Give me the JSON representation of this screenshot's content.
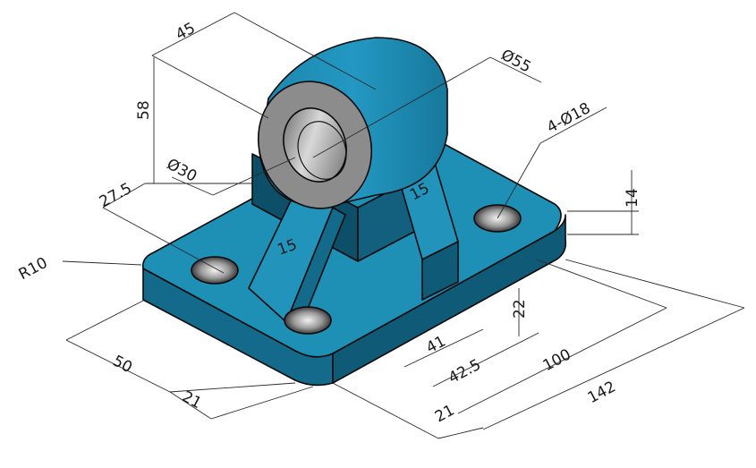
{
  "colors": {
    "body_top": "#1e8fb5",
    "body_side": "#146a8a",
    "body_dark": "#0d4e68",
    "bore_inner": "#9a9a9a",
    "bore_face": "#8c8c8c",
    "background": "#ffffff"
  },
  "dimensions": {
    "d45": "45",
    "d58": "58",
    "d55": "Ø55",
    "d30": "Ø30",
    "d27_5": "27.5",
    "d15_left": "15",
    "d15_right": "15",
    "holes": "4-Ø18",
    "d14": "14",
    "r10": "R10",
    "d22": "22",
    "d50": "50",
    "d21_left": "21",
    "d41": "41",
    "d42_5": "42.5",
    "d100": "100",
    "d21_bottom": "21",
    "d142": "142"
  }
}
